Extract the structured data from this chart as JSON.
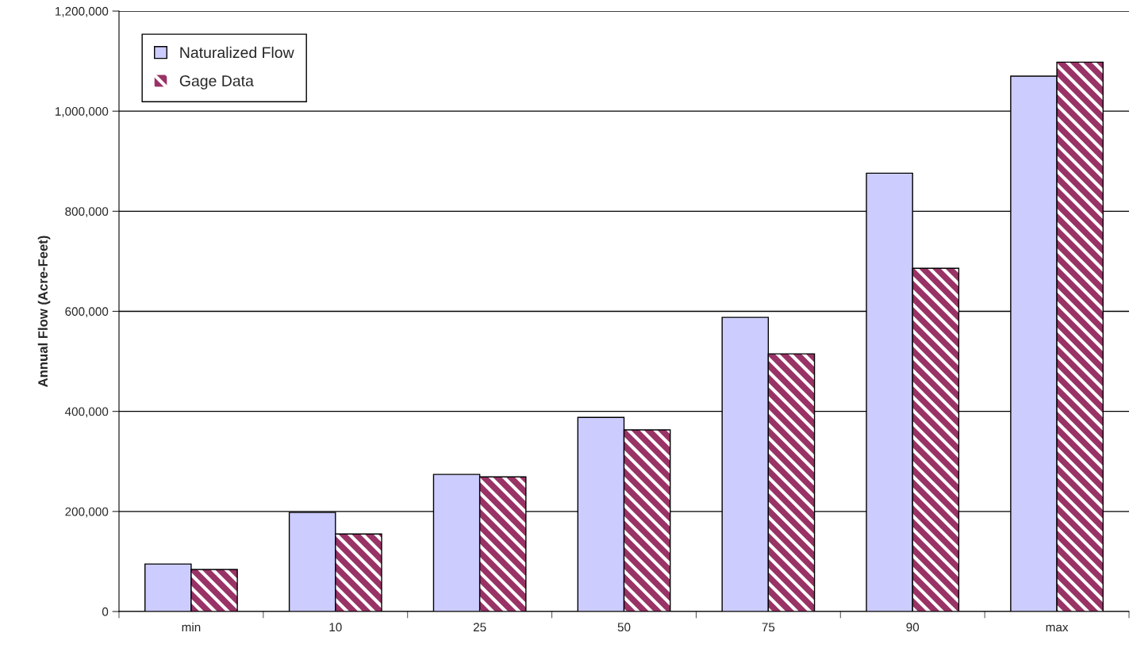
{
  "chart_data": {
    "type": "bar",
    "ylabel": "Annual Flow (Acre-Feet)",
    "categories": [
      "min",
      "10",
      "25",
      "50",
      "75",
      "90",
      "max"
    ],
    "series": [
      {
        "name": "Naturalized Flow",
        "color": "#ccccff",
        "values": [
          95000,
          198000,
          274000,
          388000,
          588000,
          876000,
          1070000
        ]
      },
      {
        "name": "Gage Data",
        "color": "#993366",
        "values": [
          84000,
          155000,
          269000,
          363000,
          515000,
          686000,
          1098000
        ]
      }
    ],
    "ylim": [
      0,
      1200000
    ],
    "yticks": [
      {
        "value": 0,
        "label": "0"
      },
      {
        "value": 200000,
        "label": "200,000"
      },
      {
        "value": 400000,
        "label": "400,000"
      },
      {
        "value": 600000,
        "label": "600,000"
      },
      {
        "value": 800000,
        "label": "800,000"
      },
      {
        "value": 1000000,
        "label": "1,000,000"
      },
      {
        "value": 1200000,
        "label": "1,200,000"
      }
    ],
    "grid": "y",
    "legend": "top left"
  }
}
